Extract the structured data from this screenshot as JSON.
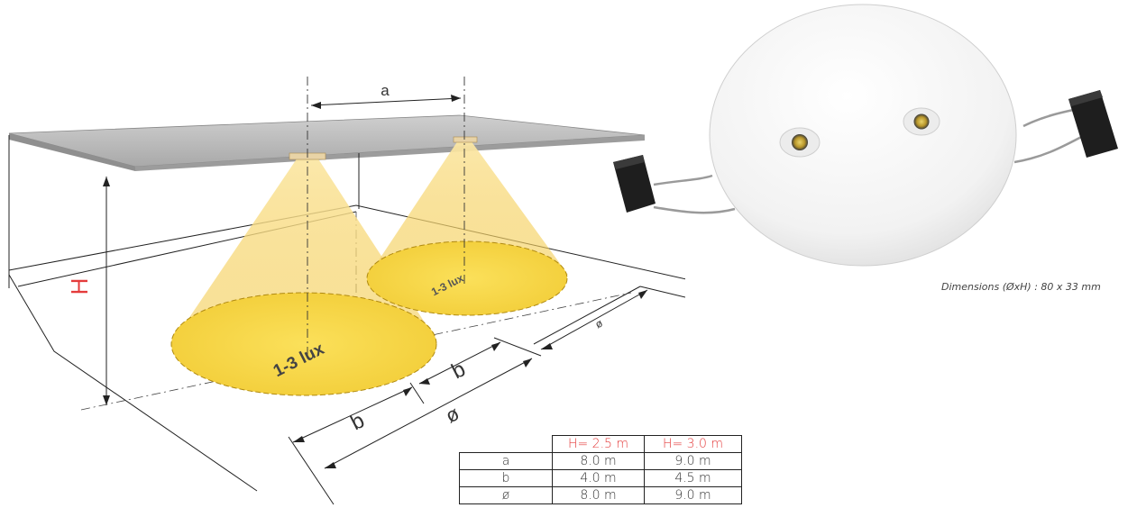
{
  "diagram": {
    "dim_a": "a",
    "dim_b_left": "b",
    "dim_b_right": "b",
    "dim_phi_bottom": "ø",
    "dim_phi_right": "ø",
    "dim_h": "H",
    "lux_large": "1-3 lux",
    "lux_small": "1-3 lux"
  },
  "table": {
    "headers": [
      "",
      "H= 2.5 m",
      "H= 3.0 m"
    ],
    "rows": [
      {
        "label": "a",
        "v1": "8.0 m",
        "v2": "9.0 m"
      },
      {
        "label": "b",
        "v1": "4.0 m",
        "v2": "4.5 m"
      },
      {
        "label": "ø",
        "v1": "8.0 m",
        "v2": "9.0 m"
      }
    ]
  },
  "product": {
    "caption": "Dimensions (ØxH) : 80 x 33 mm"
  },
  "colors": {
    "accent_red": "#e43c3c",
    "light_yellow": "#f6d64a",
    "ceiling_gray": "#bdbdbd"
  }
}
